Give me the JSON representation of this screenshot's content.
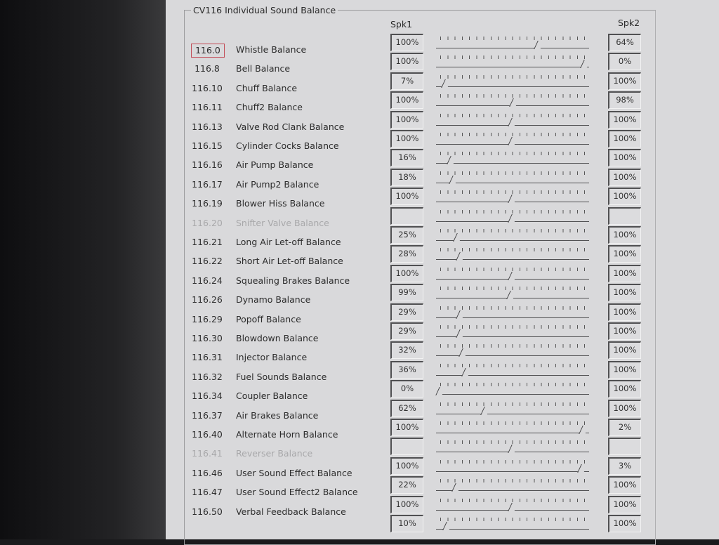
{
  "group_title": "CV116  Individual Sound Balance",
  "headers": {
    "spk1": "Spk1",
    "spk2": "Spk2"
  },
  "rows": [
    {
      "cv": "116.0",
      "label": "Whistle Balance",
      "spk1": "100%",
      "spk2": "64%",
      "slider": 68,
      "selected": true,
      "enabled": true
    },
    {
      "cv": "116.8",
      "label": "Bell Balance",
      "spk1": "100%",
      "spk2": "0%",
      "slider": 100,
      "enabled": true
    },
    {
      "cv": "116.10",
      "label": "Chuff Balance",
      "spk1": "7%",
      "spk2": "100%",
      "slider": 4,
      "enabled": true
    },
    {
      "cv": "116.11",
      "label": "Chuff2 Balance",
      "spk1": "100%",
      "spk2": "98%",
      "slider": 51,
      "enabled": true
    },
    {
      "cv": "116.13",
      "label": "Valve Rod Clank Balance",
      "spk1": "100%",
      "spk2": "100%",
      "slider": 50,
      "enabled": true
    },
    {
      "cv": "116.15",
      "label": "Cylinder Cocks Balance",
      "spk1": "100%",
      "spk2": "100%",
      "slider": 50,
      "enabled": true
    },
    {
      "cv": "116.16",
      "label": "Air Pump Balance",
      "spk1": "16%",
      "spk2": "100%",
      "slider": 8,
      "enabled": true
    },
    {
      "cv": "116.17",
      "label": "Air Pump2 Balance",
      "spk1": "18%",
      "spk2": "100%",
      "slider": 9,
      "enabled": true
    },
    {
      "cv": "116.19",
      "label": "Blower Hiss Balance",
      "spk1": "100%",
      "spk2": "100%",
      "slider": 50,
      "enabled": true
    },
    {
      "cv": "116.20",
      "label": "Snifter Valve Balance",
      "spk1": "",
      "spk2": "",
      "slider": 50,
      "enabled": false
    },
    {
      "cv": "116.21",
      "label": "Long Air Let-off Balance",
      "spk1": "25%",
      "spk2": "100%",
      "slider": 12,
      "enabled": true
    },
    {
      "cv": "116.22",
      "label": "Short Air Let-off Balance",
      "spk1": "28%",
      "spk2": "100%",
      "slider": 14,
      "enabled": true
    },
    {
      "cv": "116.24",
      "label": "Squealing Brakes Balance",
      "spk1": "100%",
      "spk2": "100%",
      "slider": 50,
      "enabled": true
    },
    {
      "cv": "116.26",
      "label": "Dynamo Balance",
      "spk1": "99%",
      "spk2": "100%",
      "slider": 49,
      "enabled": true
    },
    {
      "cv": "116.29",
      "label": "Popoff Balance",
      "spk1": "29%",
      "spk2": "100%",
      "slider": 14,
      "enabled": true
    },
    {
      "cv": "116.30",
      "label": "Blowdown Balance",
      "spk1": "29%",
      "spk2": "100%",
      "slider": 14,
      "enabled": true
    },
    {
      "cv": "116.31",
      "label": "Injector Balance",
      "spk1": "32%",
      "spk2": "100%",
      "slider": 16,
      "enabled": true
    },
    {
      "cv": "116.32",
      "label": "Fuel Sounds Balance",
      "spk1": "36%",
      "spk2": "100%",
      "slider": 18,
      "enabled": true
    },
    {
      "cv": "116.34",
      "label": "Coupler Balance",
      "spk1": "0%",
      "spk2": "100%",
      "slider": 0,
      "enabled": true
    },
    {
      "cv": "116.37",
      "label": "Air Brakes Balance",
      "spk1": "62%",
      "spk2": "100%",
      "slider": 31,
      "enabled": true
    },
    {
      "cv": "116.40",
      "label": "Alternate Horn Balance",
      "spk1": "100%",
      "spk2": "2%",
      "slider": 99,
      "enabled": true
    },
    {
      "cv": "116.41",
      "label": "Reverser Balance",
      "spk1": "",
      "spk2": "",
      "slider": 50,
      "enabled": false
    },
    {
      "cv": "116.46",
      "label": "User Sound Effect Balance",
      "spk1": "100%",
      "spk2": "3%",
      "slider": 98,
      "enabled": true
    },
    {
      "cv": "116.47",
      "label": "User Sound Effect2 Balance",
      "spk1": "22%",
      "spk2": "100%",
      "slider": 11,
      "enabled": true
    },
    {
      "cv": "116.50",
      "label": "Verbal Feedback Balance",
      "spk1": "100%",
      "spk2": "100%",
      "slider": 50,
      "enabled": true
    },
    {
      "cv": "",
      "label": "",
      "spk1": "10%",
      "spk2": "100%",
      "slider": 5,
      "enabled": true
    }
  ]
}
